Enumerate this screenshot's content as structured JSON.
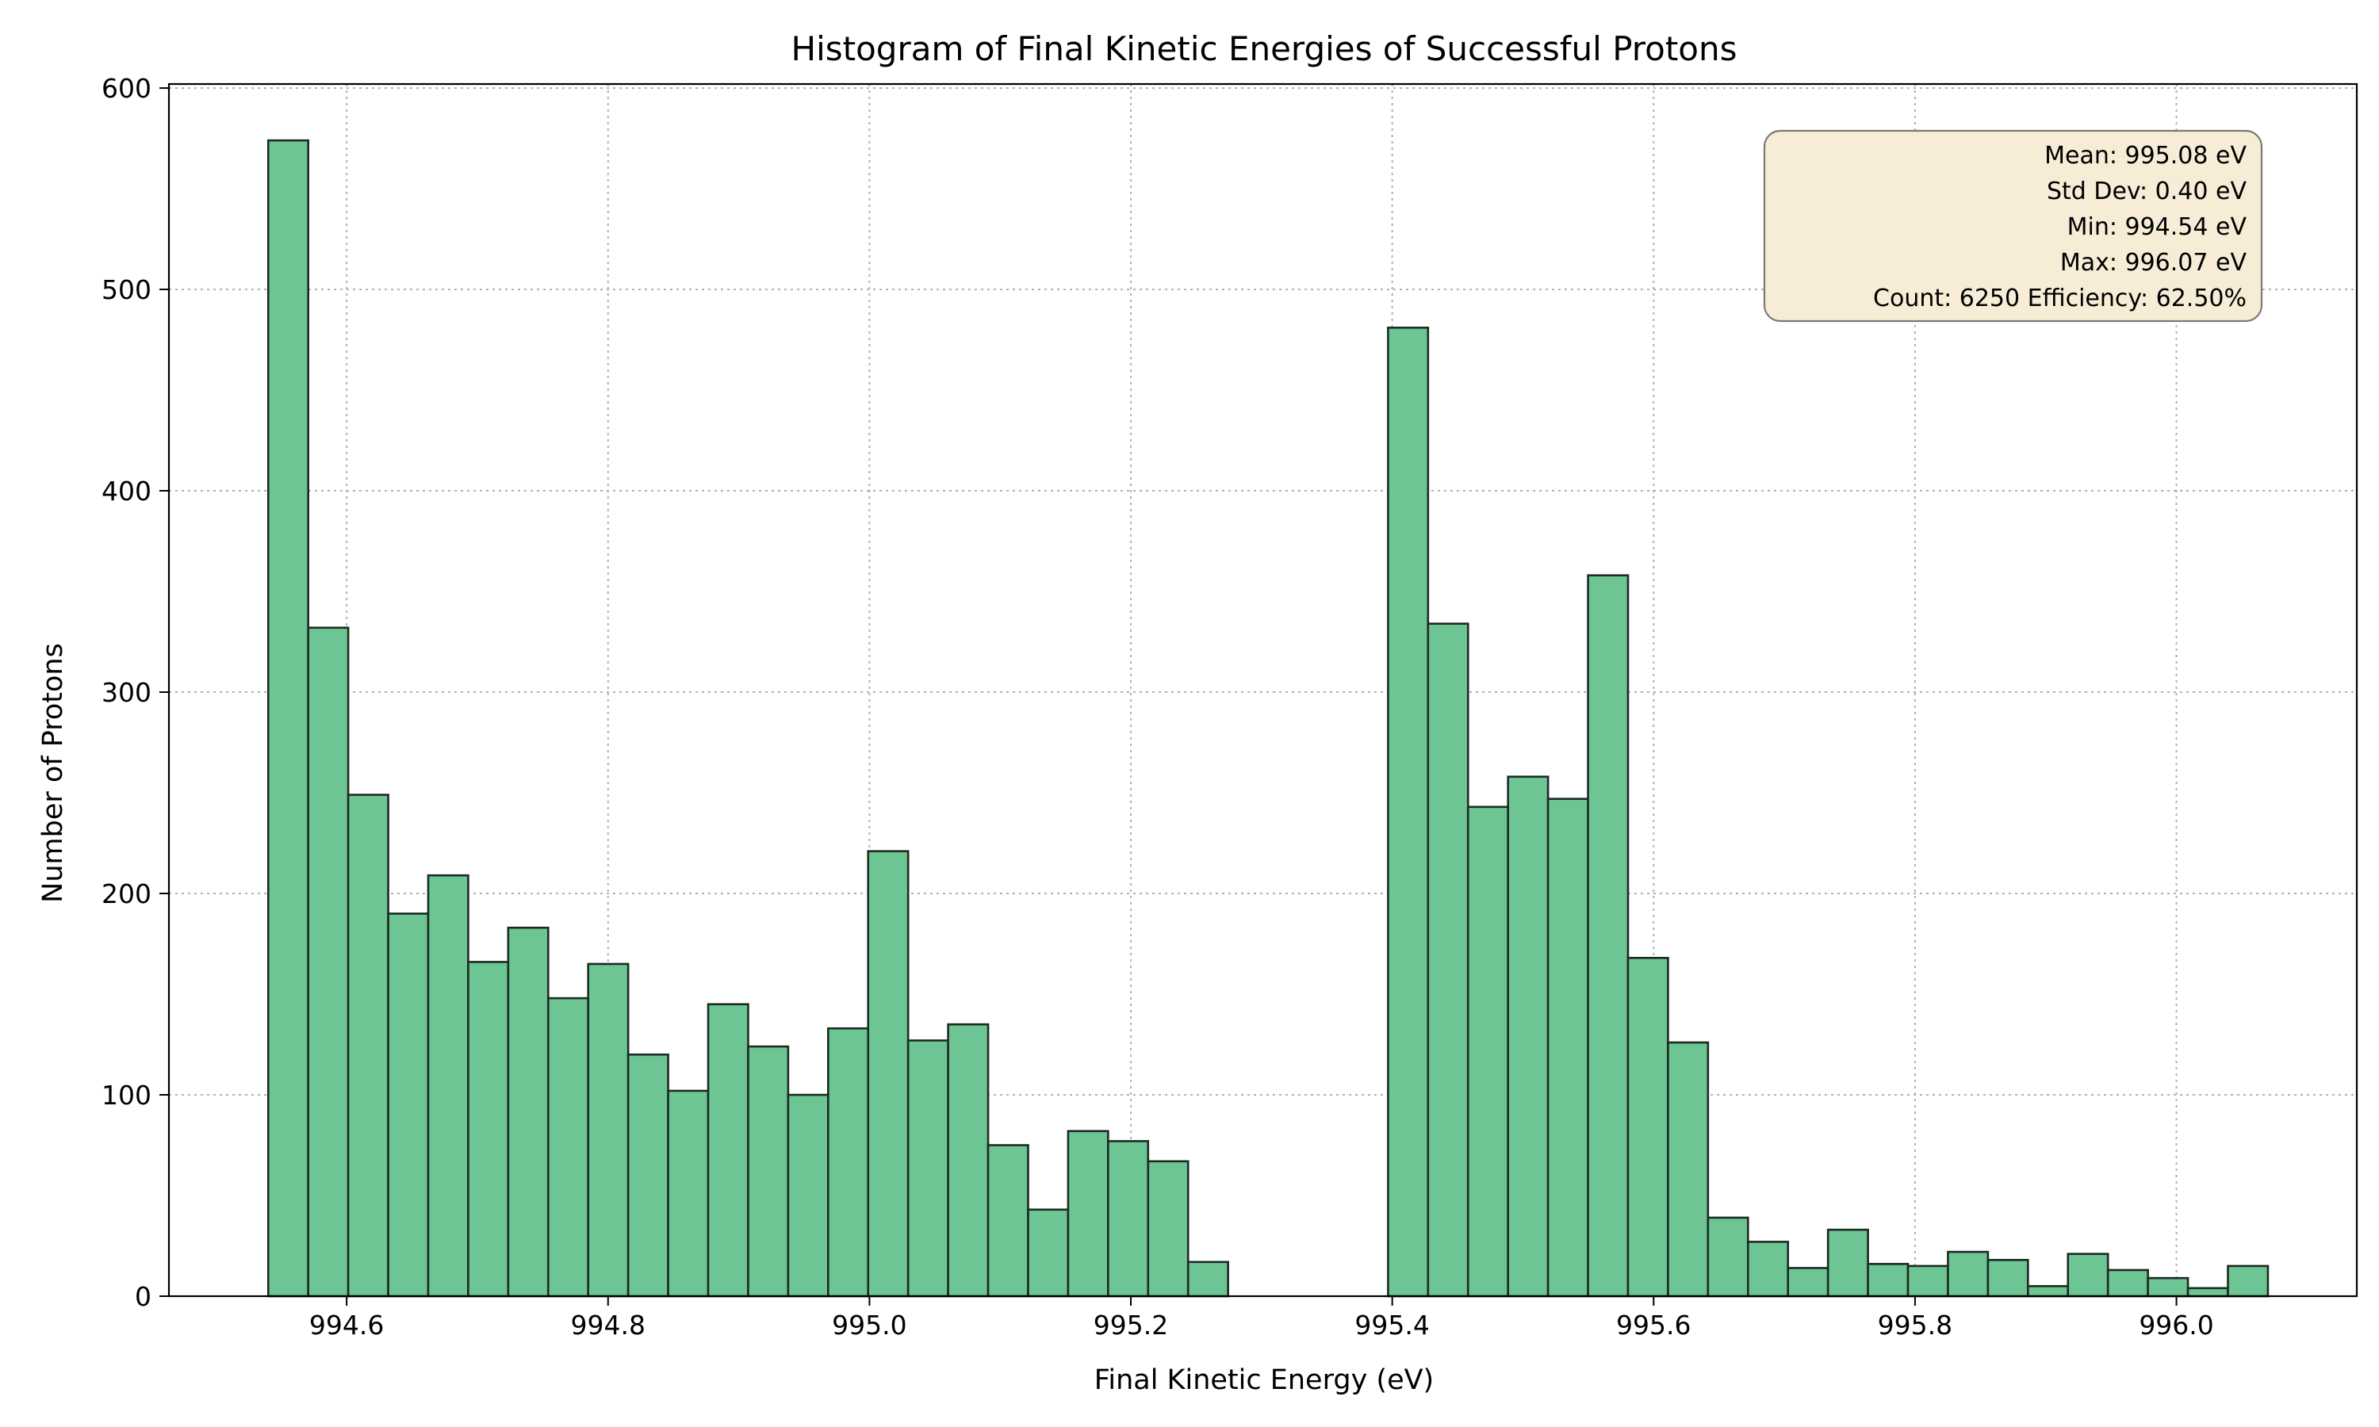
{
  "chart_data": {
    "type": "bar",
    "title": "Histogram of Final Kinetic Energies of Successful Protons",
    "xlabel": "Final Kinetic Energy (eV)",
    "ylabel": "Number of Protons",
    "xlim": [
      994.464,
      996.138
    ],
    "ylim": [
      0,
      602
    ],
    "x_ticks": [
      994.6,
      994.8,
      995.0,
      995.2,
      995.4,
      995.6,
      995.8,
      996.0
    ],
    "x_tick_labels": [
      "994.6",
      "994.8",
      "995.0",
      "995.2",
      "995.4",
      "995.6",
      "995.8",
      "996.0"
    ],
    "y_ticks": [
      0,
      100,
      200,
      300,
      400,
      500,
      600
    ],
    "y_tick_labels": [
      "0",
      "100",
      "200",
      "300",
      "400",
      "500",
      "600"
    ],
    "grid": true,
    "bin_start": 994.54,
    "bin_end": 996.07,
    "values": [
      574,
      332,
      249,
      190,
      209,
      166,
      183,
      148,
      165,
      120,
      102,
      145,
      124,
      100,
      133,
      221,
      127,
      135,
      75,
      43,
      82,
      77,
      67,
      17,
      0,
      0,
      0,
      0,
      481,
      334,
      243,
      258,
      247,
      358,
      168,
      126,
      39,
      27,
      14,
      33,
      16,
      15,
      22,
      18,
      5,
      21,
      13,
      9,
      4,
      15
    ],
    "bar_color": "#6cc592",
    "edge_color": "#1c2b22",
    "stats_box": {
      "lines": [
        "Mean: 995.08 eV",
        "Std Dev: 0.40 eV",
        "Min: 994.54 eV",
        "Max: 996.07 eV ",
        "Count: 6250 Efficiency: 62.50%"
      ],
      "placement": "top-right",
      "background": "#f7ecd6"
    }
  }
}
